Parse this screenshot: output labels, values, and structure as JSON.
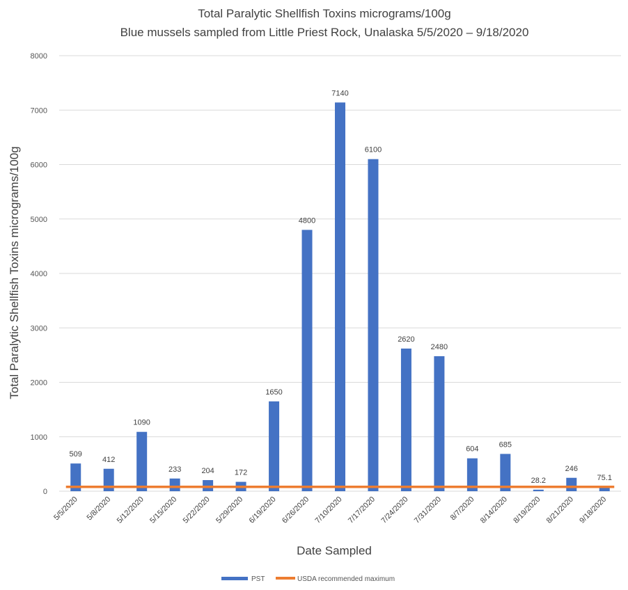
{
  "chart_data": {
    "type": "bar",
    "title": "Total Paralytic Shellfish Toxins micrograms/100g",
    "subtitle": "Blue mussels sampled from Little Priest Rock, Unalaska 5/5/2020 – 9/18/2020",
    "xlabel": "Date Sampled",
    "ylabel": "Total Paralytic Shellfish Toxins micrograms/100g",
    "ylim": [
      0,
      8000
    ],
    "yticks": [
      0,
      1000,
      2000,
      3000,
      4000,
      5000,
      6000,
      7000,
      8000
    ],
    "grid": true,
    "legend_position": "bottom",
    "categories": [
      "5/5/2020",
      "5/8/2020",
      "5/12/2020",
      "5/15/2020",
      "5/22/2020",
      "5/29/2020",
      "6/19/2020",
      "6/26/2020",
      "7/10/2020",
      "7/17/2020",
      "7/24/2020",
      "7/31/2020",
      "8/7/2020",
      "8/14/2020",
      "8/19/2020",
      "8/21/2020",
      "9/18/2020"
    ],
    "series": [
      {
        "name": "PST",
        "type": "bar",
        "color": "#4472C4",
        "values": [
          509,
          412,
          1090,
          233,
          204,
          172,
          1650,
          4800,
          7140,
          6100,
          2620,
          2480,
          604,
          685,
          28.2,
          246,
          75.1
        ],
        "labels": [
          "509",
          "412",
          "1090",
          "233",
          "204",
          "172",
          "1650",
          "4800",
          "7140",
          "6100",
          "2620",
          "2480",
          "604",
          "685",
          "28.2",
          "246",
          "75.1"
        ]
      },
      {
        "name": "USDA recommended maximum",
        "type": "line",
        "color": "#ED7D31",
        "values": [
          80,
          80,
          80,
          80,
          80,
          80,
          80,
          80,
          80,
          80,
          80,
          80,
          80,
          80,
          80,
          80,
          80
        ]
      }
    ]
  }
}
